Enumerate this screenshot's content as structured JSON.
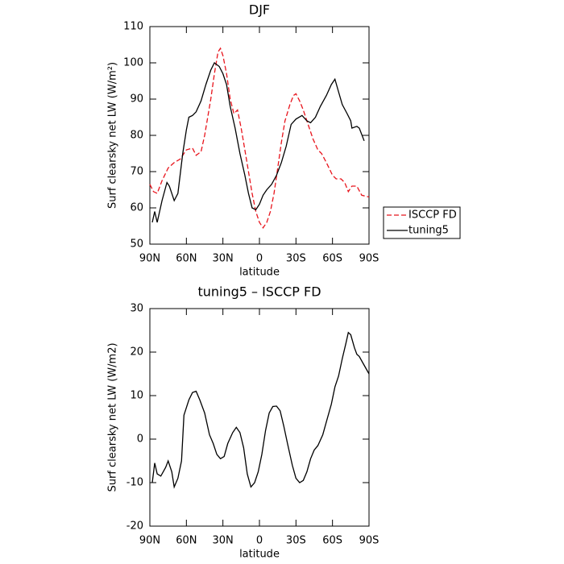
{
  "chart_data": [
    {
      "type": "line",
      "title": "DJF",
      "x_label": "latitude",
      "y_label": "Surf clearsky net LW (W/m²)",
      "xlim": [
        90,
        -90
      ],
      "xticks": [
        {
          "value": 90,
          "label": "90N"
        },
        {
          "value": 60,
          "label": "60N"
        },
        {
          "value": 30,
          "label": "30N"
        },
        0,
        {
          "value": -30,
          "label": "30S"
        },
        {
          "value": -60,
          "label": "60S"
        },
        {
          "value": -90,
          "label": "90S"
        }
      ],
      "ylim": [
        50,
        110
      ],
      "yticks": [
        50,
        60,
        70,
        80,
        90,
        100,
        110
      ],
      "legend": "right",
      "series": [
        {
          "name": "ISCCP FD",
          "color": "#e8141c",
          "dash": true,
          "x": [
            90,
            87,
            84,
            80,
            75,
            70,
            65,
            60,
            55,
            52,
            48,
            45,
            40,
            37,
            34,
            32,
            30,
            27,
            24,
            21,
            18,
            15,
            12,
            9,
            6,
            3,
            0,
            -3,
            -6,
            -9,
            -12,
            -15,
            -18,
            -21,
            -25,
            -28,
            -30,
            -33,
            -36,
            -40,
            -44,
            -48,
            -51,
            -55,
            -60,
            -63,
            -67,
            -70,
            -73,
            -76,
            -80,
            -84,
            -90
          ],
          "values": [
            66.5,
            64.5,
            64,
            67.5,
            71,
            72.5,
            73.5,
            76,
            76.5,
            74.5,
            75.5,
            80,
            90,
            97,
            103,
            104,
            102,
            97,
            90,
            86,
            87,
            82,
            76,
            70,
            64,
            59,
            56,
            54.5,
            56,
            59,
            64,
            71,
            78,
            84,
            88.5,
            91,
            91.5,
            89.5,
            87,
            83,
            79,
            76,
            75,
            72.5,
            69,
            68,
            68,
            67,
            64.5,
            66,
            66,
            63.5,
            63
          ]
        },
        {
          "name": "tuning5",
          "color": "#000000",
          "dash": false,
          "x": [
            88,
            86,
            84,
            80,
            76,
            74,
            70,
            67,
            63,
            60,
            58,
            55,
            52,
            48,
            44,
            40,
            37,
            33,
            30,
            27,
            24,
            20,
            16,
            12,
            9,
            6,
            3,
            0,
            -3,
            -6,
            -10,
            -14,
            -18,
            -22,
            -26,
            -30,
            -35,
            -39,
            -42,
            -46,
            -50,
            -55,
            -59,
            -62,
            -65,
            -68,
            -72,
            -75,
            -76,
            -80,
            -82,
            -86
          ],
          "values": [
            56,
            59,
            56,
            62,
            67,
            66,
            62,
            64,
            75,
            81.5,
            85,
            85.5,
            86.5,
            89.5,
            94,
            98,
            100,
            99,
            97,
            94,
            88,
            82,
            75,
            69,
            64,
            60,
            59.5,
            61,
            63.5,
            65,
            66.5,
            69,
            72.5,
            77,
            83,
            84.5,
            85.5,
            84,
            83.5,
            85,
            88,
            91,
            94,
            95.5,
            92,
            88.5,
            86,
            84,
            82,
            82.5,
            82,
            78.5
          ]
        }
      ]
    },
    {
      "type": "line",
      "title": "tuning5 – ISCCP FD",
      "x_label": "latitude",
      "y_label": "Surf clearsky net LW (W/m2)",
      "xlim": [
        90,
        -90
      ],
      "xticks": [
        {
          "value": 90,
          "label": "90N"
        },
        {
          "value": 60,
          "label": "60N"
        },
        {
          "value": 30,
          "label": "30N"
        },
        0,
        {
          "value": -30,
          "label": "30S"
        },
        {
          "value": -60,
          "label": "60S"
        },
        {
          "value": -90,
          "label": "90S"
        }
      ],
      "ylim": [
        -20,
        30
      ],
      "yticks": [
        -20,
        -10,
        0,
        10,
        20,
        30
      ],
      "series": [
        {
          "color": "#000000",
          "dash": false,
          "x": [
            88,
            86,
            84,
            81,
            77,
            75,
            72,
            70,
            67,
            64,
            62,
            58,
            55,
            52,
            49,
            45,
            41,
            38,
            35,
            32,
            29,
            26,
            22,
            19,
            16,
            13,
            10,
            7,
            4,
            1,
            -2,
            -5,
            -8,
            -11,
            -14,
            -17,
            -20,
            -23,
            -27,
            -30,
            -33,
            -36,
            -39,
            -42,
            -45,
            -48,
            -52,
            -55,
            -59,
            -62,
            -65,
            -68,
            -71,
            -73,
            -75,
            -78,
            -80,
            -82,
            -85,
            -90
          ],
          "values": [
            -10,
            -5.5,
            -8,
            -8.5,
            -6.5,
            -5,
            -7.5,
            -11,
            -9,
            -5,
            5.5,
            9,
            10.7,
            11,
            9,
            6,
            1,
            -1,
            -3.5,
            -4.5,
            -4,
            -1,
            1.5,
            2.7,
            1.5,
            -2,
            -8,
            -11,
            -10,
            -7.5,
            -3.5,
            2,
            6,
            7.5,
            7.6,
            6.5,
            3,
            -1,
            -6,
            -9,
            -10,
            -9.5,
            -7.5,
            -4.5,
            -2.5,
            -1.5,
            1,
            4,
            8,
            12,
            14.5,
            18.5,
            22,
            24.5,
            24,
            21,
            19.5,
            19,
            17.5,
            15
          ]
        }
      ]
    }
  ]
}
